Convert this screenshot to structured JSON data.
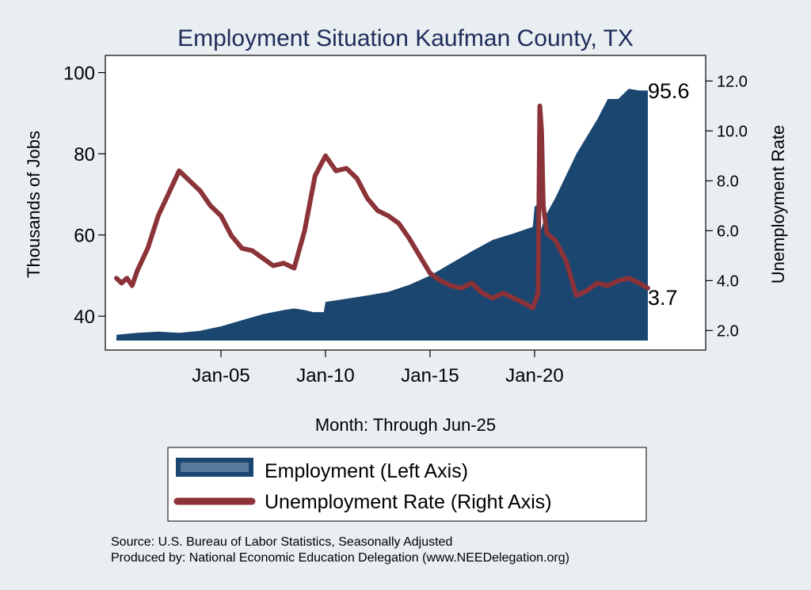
{
  "chart_data": {
    "type": "area",
    "title": "Employment Situation Kaufman  County, TX",
    "xlabel": "Month: Through Jun-25",
    "ylabel_left": "Thousands of Jobs",
    "ylabel_right": "Unemployment Rate",
    "x_ticks": [
      "Jan-05",
      "Jan-10",
      "Jan-15",
      "Jan-20"
    ],
    "x_range": [
      "Jan-00",
      "Jun-25"
    ],
    "y_left_ticks": [
      "40",
      "60",
      "80",
      "100"
    ],
    "y_left_range": [
      34,
      101
    ],
    "y_right_ticks": [
      "2.0",
      "4.0",
      "6.0",
      "8.0",
      "10.0",
      "12.0"
    ],
    "y_right_range": [
      1.6,
      12.5
    ],
    "series": [
      {
        "name": "Employment (Left Axis)",
        "axis": "left",
        "kind": "area",
        "color": "#1b4670",
        "points": [
          [
            "Jan-00",
            35.4
          ],
          [
            "Jan-01",
            35.9
          ],
          [
            "Jan-02",
            36.2
          ],
          [
            "Jan-03",
            35.9
          ],
          [
            "Jan-04",
            36.4
          ],
          [
            "Jan-05",
            37.5
          ],
          [
            "Jan-06",
            39.0
          ],
          [
            "Jan-07",
            40.5
          ],
          [
            "Jan-08",
            41.5
          ],
          [
            "Jul-08",
            41.9
          ],
          [
            "Jan-09",
            41.5
          ],
          [
            "Jun-09",
            41.0
          ],
          [
            "Dec-09",
            41.0
          ],
          [
            "Jan-10",
            43.5
          ],
          [
            "Jan-11",
            44.3
          ],
          [
            "Jan-12",
            45.1
          ],
          [
            "Jan-13",
            46.0
          ],
          [
            "Jan-14",
            47.7
          ],
          [
            "Jan-15",
            50.0
          ],
          [
            "Jan-16",
            53.0
          ],
          [
            "Jan-17",
            56.0
          ],
          [
            "Jan-18",
            58.8
          ],
          [
            "Jan-19",
            60.4
          ],
          [
            "Dec-19",
            62.0
          ],
          [
            "Jan-20",
            67.0
          ],
          [
            "Mar-20",
            67.5
          ],
          [
            "Apr-20",
            60.4
          ],
          [
            "Jul-20",
            64.5
          ],
          [
            "Jan-21",
            69.2
          ],
          [
            "Jan-22",
            80.0
          ],
          [
            "Jan-23",
            88.5
          ],
          [
            "Jul-23",
            93.5
          ],
          [
            "Jan-24",
            93.5
          ],
          [
            "Jul-24",
            96.0
          ],
          [
            "Jan-25",
            95.6
          ],
          [
            "Jun-25",
            95.6
          ]
        ]
      },
      {
        "name": "Unemployment Rate (Right Axis)",
        "axis": "right",
        "kind": "line",
        "color": "#8b3339",
        "points": [
          [
            "Jan-00",
            4.1
          ],
          [
            "Apr-00",
            3.9
          ],
          [
            "Jul-00",
            4.1
          ],
          [
            "Oct-00",
            3.8
          ],
          [
            "Jan-01",
            4.4
          ],
          [
            "Jul-01",
            5.3
          ],
          [
            "Jan-02",
            6.6
          ],
          [
            "Jul-02",
            7.5
          ],
          [
            "Jan-03",
            8.4
          ],
          [
            "Jul-03",
            8.0
          ],
          [
            "Jan-04",
            7.6
          ],
          [
            "Jul-04",
            7.0
          ],
          [
            "Jan-05",
            6.6
          ],
          [
            "Jul-05",
            5.8
          ],
          [
            "Jan-06",
            5.3
          ],
          [
            "Jul-06",
            5.2
          ],
          [
            "Jan-07",
            4.9
          ],
          [
            "Jul-07",
            4.6
          ],
          [
            "Jan-08",
            4.7
          ],
          [
            "Jul-08",
            4.5
          ],
          [
            "Jan-09",
            6.0
          ],
          [
            "Jul-09",
            8.2
          ],
          [
            "Jan-10",
            9.0
          ],
          [
            "Jul-10",
            8.4
          ],
          [
            "Jan-11",
            8.5
          ],
          [
            "Jul-11",
            8.1
          ],
          [
            "Jan-12",
            7.3
          ],
          [
            "Jul-12",
            6.8
          ],
          [
            "Jan-13",
            6.6
          ],
          [
            "Jul-13",
            6.3
          ],
          [
            "Jan-14",
            5.7
          ],
          [
            "Jul-14",
            5.0
          ],
          [
            "Jan-15",
            4.3
          ],
          [
            "Jul-15",
            4.0
          ],
          [
            "Jan-16",
            3.8
          ],
          [
            "Jul-16",
            3.7
          ],
          [
            "Jan-17",
            3.9
          ],
          [
            "Jul-17",
            3.5
          ],
          [
            "Jan-18",
            3.3
          ],
          [
            "Jul-18",
            3.5
          ],
          [
            "Jan-19",
            3.3
          ],
          [
            "Jul-19",
            3.1
          ],
          [
            "Dec-19",
            2.9
          ],
          [
            "Mar-20",
            3.5
          ],
          [
            "Apr-20",
            11.0
          ],
          [
            "May-20",
            10.0
          ],
          [
            "Jun-20",
            7.0
          ],
          [
            "Aug-20",
            5.9
          ],
          [
            "Jan-21",
            5.6
          ],
          [
            "Jul-21",
            4.8
          ],
          [
            "Jan-22",
            3.4
          ],
          [
            "Jul-22",
            3.6
          ],
          [
            "Jan-23",
            3.9
          ],
          [
            "Jul-23",
            3.8
          ],
          [
            "Jan-24",
            4.0
          ],
          [
            "Jul-24",
            4.1
          ],
          [
            "Jan-25",
            3.9
          ],
          [
            "Jun-25",
            3.7
          ]
        ]
      }
    ],
    "end_labels": {
      "employment": "95.6",
      "unemployment": "3.7"
    },
    "legend": {
      "placement": "bottom",
      "entries": [
        "Employment (Left Axis)",
        "Unemployment Rate (Right Axis)"
      ]
    },
    "grid": false
  },
  "notes": {
    "source": "Source: U.S. Bureau of Labor Statistics, Seasonally Adjusted",
    "produced_by": "Produced by: National Economic Education Delegation (www.NEEDelegation.org)"
  },
  "colors": {
    "background": "#e9eef2",
    "plot_background": "#ffffff",
    "employment_fill": "#1b4670",
    "unemployment_line": "#8b3339",
    "title": "#1e2d5a"
  }
}
